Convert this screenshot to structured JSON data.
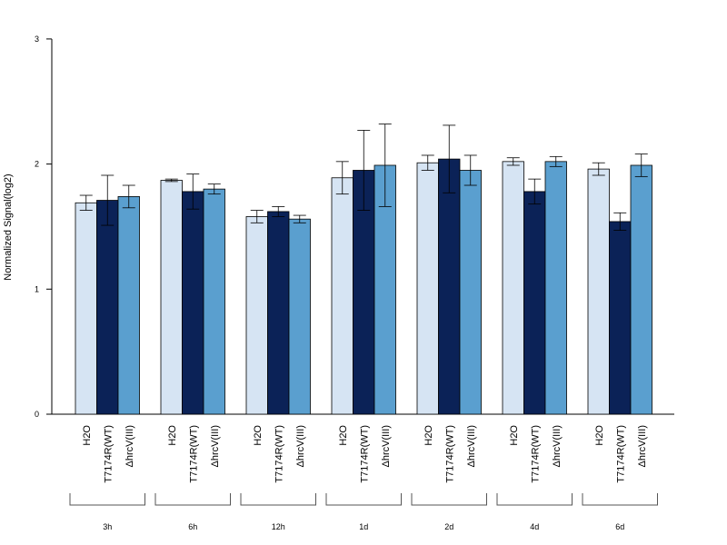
{
  "chart_data": {
    "type": "bar",
    "ylabel": "Normalized Signal(log2)",
    "ylim": [
      0,
      3
    ],
    "yticks": [
      "0",
      "1",
      "2",
      "3"
    ],
    "groups": [
      "3h",
      "6h",
      "12h",
      "1d",
      "2d",
      "4d",
      "6d"
    ],
    "series": [
      {
        "name": "H2O",
        "color": "#d6e4f3",
        "values": [
          1.69,
          1.87,
          1.58,
          1.89,
          2.01,
          2.02,
          1.96
        ],
        "errors": [
          0.06,
          0.01,
          0.05,
          0.13,
          0.06,
          0.03,
          0.05
        ]
      },
      {
        "name": "T7174R(WT)",
        "color": "#0b2257",
        "values": [
          1.71,
          1.78,
          1.62,
          1.95,
          2.04,
          1.78,
          1.54
        ],
        "errors": [
          0.2,
          0.14,
          0.04,
          0.32,
          0.27,
          0.1,
          0.07
        ]
      },
      {
        "name": "ΔhrcV(III)",
        "color": "#5a9fcf",
        "values": [
          1.74,
          1.8,
          1.56,
          1.99,
          1.95,
          2.02,
          1.99
        ],
        "errors": [
          0.09,
          0.04,
          0.03,
          0.33,
          0.12,
          0.04,
          0.09
        ]
      }
    ]
  }
}
